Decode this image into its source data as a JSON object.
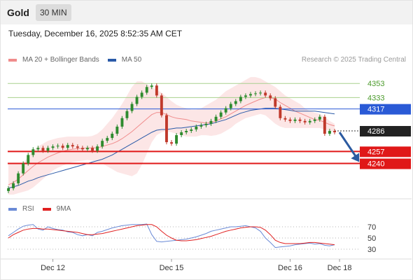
{
  "header": {
    "asset": "Gold",
    "timeframe": "30 MIN"
  },
  "datetime": "Tuesday, December 16, 2025 8:52:35 AM CET",
  "credit": "Research © 2025 Trading Central",
  "colors": {
    "bollinger": "#f08c8c",
    "ma50": "#2a5aa8",
    "up": "#2e8b2e",
    "down": "#c0392b",
    "rsi": "#6a8ad6",
    "rsi_ma": "#e02020",
    "arrow": "#2b5aa0",
    "resistance": "#a8d08d",
    "support": "#e01818",
    "pivot": "#2a5ad6",
    "price": "#222222"
  },
  "chart_data": [
    {
      "type": "line",
      "title": "",
      "legend": [
        {
          "name": "MA 20 + Bollinger Bands",
          "color": "#f08c8c"
        },
        {
          "name": "MA 50",
          "color": "#2a5aa8"
        }
      ],
      "legend_position": "top-left",
      "ylim": [
        4200,
        4370
      ],
      "x_labels": [
        "Dec 12",
        "Dec 15",
        "Dec 16",
        "Dec 18"
      ],
      "x_label_positions": [
        9,
        33,
        57,
        67
      ],
      "last_index": 66,
      "levels": [
        {
          "value": 4353,
          "label": "4353",
          "kind": "resistance"
        },
        {
          "value": 4333,
          "label": "4333",
          "kind": "resistance"
        },
        {
          "value": 4317,
          "label": "4317",
          "kind": "pivot"
        },
        {
          "value": 4286,
          "label": "4286",
          "kind": "price"
        },
        {
          "value": 4257,
          "label": "4257",
          "kind": "support"
        },
        {
          "value": 4240,
          "label": "4240",
          "kind": "support"
        }
      ],
      "forecast_arrow": {
        "from": [
          67,
          4284
        ],
        "to": [
          71,
          4242
        ]
      },
      "close": [
        4205,
        4212,
        4226,
        4240,
        4252,
        4260,
        4262,
        4258,
        4262,
        4264,
        4265,
        4262,
        4266,
        4264,
        4262,
        4260,
        4262,
        4258,
        4264,
        4272,
        4276,
        4282,
        4292,
        4304,
        4314,
        4324,
        4334,
        4340,
        4348,
        4350,
        4336,
        4308,
        4270,
        4268,
        4280,
        4284,
        4286,
        4288,
        4292,
        4294,
        4296,
        4300,
        4306,
        4312,
        4318,
        4324,
        4328,
        4334,
        4336,
        4338,
        4339,
        4340,
        4336,
        4332,
        4320,
        4304,
        4302,
        4300,
        4302,
        4300,
        4298,
        4300,
        4302,
        4306,
        4282,
        4286,
        4284
      ],
      "ma20": [
        4210,
        4213,
        4218,
        4224,
        4230,
        4236,
        4241,
        4245,
        4249,
        4252,
        4255,
        4257,
        4259,
        4260,
        4261,
        4261,
        4262,
        4262,
        4262,
        4264,
        4266,
        4268,
        4271,
        4275,
        4280,
        4285,
        4291,
        4297,
        4303,
        4309,
        4312,
        4312,
        4309,
        4306,
        4304,
        4303,
        4302,
        4300,
        4299,
        4298,
        4297,
        4298,
        4300,
        4303,
        4306,
        4310,
        4314,
        4318,
        4322,
        4325,
        4328,
        4331,
        4333,
        4333,
        4331,
        4326,
        4322,
        4318,
        4314,
        4311,
        4308,
        4305,
        4302,
        4301,
        4298,
        4295,
        4293
      ],
      "ma50": [
        4205,
        4207,
        4209,
        4212,
        4215,
        4217,
        4220,
        4222,
        4224,
        4226,
        4228,
        4230,
        4232,
        4234,
        4236,
        4238,
        4240,
        4242,
        4244,
        4246,
        4249,
        4252,
        4256,
        4260,
        4264,
        4268,
        4272,
        4276,
        4280,
        4284,
        4287,
        4288,
        4288,
        4289,
        4290,
        4290,
        4291,
        4292,
        4293,
        4294,
        4295,
        4296,
        4298,
        4300,
        4302,
        4305,
        4308,
        4311,
        4313,
        4315,
        4316,
        4317,
        4318,
        4318,
        4318,
        4317,
        4316,
        4315,
        4314,
        4314,
        4314,
        4314,
        4314,
        4313,
        4312,
        4311,
        4310
      ],
      "bb_upper": [
        4240,
        4240,
        4240,
        4240,
        4250,
        4258,
        4264,
        4268,
        4272,
        4274,
        4276,
        4277,
        4278,
        4278,
        4278,
        4278,
        4278,
        4279,
        4282,
        4288,
        4296,
        4304,
        4314,
        4324,
        4336,
        4348,
        4356,
        4356,
        4352,
        4348,
        4344,
        4340,
        4334,
        4328,
        4323,
        4320,
        4318,
        4316,
        4316,
        4318,
        4322,
        4326,
        4330,
        4336,
        4342,
        4346,
        4350,
        4354,
        4358,
        4362,
        4362,
        4360,
        4356,
        4352,
        4348,
        4342,
        4336,
        4332,
        4328,
        4324,
        4318,
        4314,
        4312,
        4310,
        4306,
        4300,
        4296
      ],
      "bb_lower": [
        4196,
        4196,
        4198,
        4200,
        4202,
        4206,
        4212,
        4218,
        4224,
        4230,
        4234,
        4237,
        4240,
        4242,
        4243,
        4244,
        4245,
        4244,
        4242,
        4240,
        4236,
        4232,
        4228,
        4226,
        4224,
        4222,
        4226,
        4238,
        4254,
        4270,
        4280,
        4284,
        4286,
        4284,
        4282,
        4280,
        4278,
        4278,
        4278,
        4280,
        4280,
        4279,
        4280,
        4282,
        4286,
        4290,
        4296,
        4300,
        4304,
        4306,
        4308,
        4310,
        4308,
        4302,
        4296,
        4292,
        4290,
        4290,
        4290,
        4290,
        4290,
        4290,
        4290,
        4290,
        4288,
        4286,
        4284
      ]
    },
    {
      "type": "line",
      "title": "",
      "legend": [
        {
          "name": "RSI",
          "color": "#6a8ad6"
        },
        {
          "name": "9MA",
          "color": "#e02020"
        }
      ],
      "legend_position": "top-left",
      "ylim": [
        20,
        80
      ],
      "y_ticks": [
        70,
        50,
        30
      ],
      "series": [
        {
          "name": "RSI",
          "values": [
            54,
            60,
            66,
            71,
            73,
            74,
            66,
            64,
            70,
            67,
            65,
            64,
            61,
            60,
            56,
            54,
            56,
            54,
            60,
            62,
            65,
            68,
            70,
            72,
            73,
            74,
            74,
            74,
            75,
            56,
            44,
            43,
            44,
            45,
            46,
            47,
            48,
            50,
            52,
            55,
            58,
            62,
            64,
            66,
            68,
            70,
            70,
            71,
            72,
            70,
            68,
            62,
            50,
            42,
            33,
            34,
            35,
            36,
            38,
            39,
            40,
            41,
            39,
            40,
            37,
            36,
            38
          ]
        },
        {
          "name": "9MA",
          "values": [
            50,
            56,
            60,
            64,
            66,
            67,
            67,
            66,
            66,
            65,
            64,
            63,
            62,
            61,
            60,
            58,
            56,
            56,
            57,
            58,
            60,
            62,
            64,
            66,
            68,
            70,
            72,
            73,
            74,
            74,
            70,
            62,
            55,
            50,
            46,
            45,
            45,
            46,
            47,
            49,
            51,
            53,
            56,
            59,
            62,
            64,
            66,
            68,
            69,
            70,
            70,
            69,
            64,
            56,
            46,
            42,
            40,
            40,
            40,
            40,
            41,
            42,
            42,
            41,
            40,
            39,
            38
          ]
        }
      ]
    }
  ]
}
